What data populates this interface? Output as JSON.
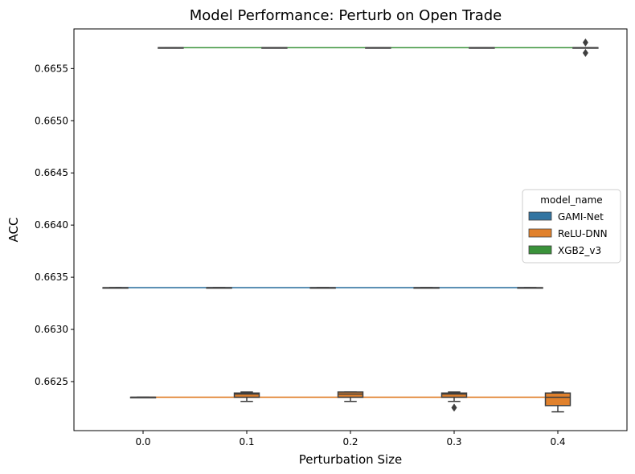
{
  "chart_data": {
    "type": "box",
    "title": "Model Performance: Perturb on Open Trade",
    "xlabel": "Perturbation Size",
    "ylabel": "ACC",
    "categories": [
      "0.0",
      "0.1",
      "0.2",
      "0.3",
      "0.4"
    ],
    "ylim": [
      0.66203,
      0.66588
    ],
    "yticks": [
      "0.6625",
      "0.6630",
      "0.6635",
      "0.6640",
      "0.6645",
      "0.6650",
      "0.6655"
    ],
    "ytick_values": [
      0.6625,
      0.663,
      0.6635,
      0.664,
      0.6645,
      0.665,
      0.6655
    ],
    "grid": false,
    "legend": {
      "title": "model_name",
      "placement": "center-right"
    },
    "series": [
      {
        "name": "GAMI-Net",
        "color": "#3274a1",
        "median_line": [
          0.6634,
          0.6634,
          0.6634,
          0.6634,
          0.6634
        ],
        "boxes": [
          {
            "q1": 0.6634,
            "median": 0.6634,
            "q3": 0.6634,
            "whislo": 0.6634,
            "whishi": 0.6634,
            "fliers": []
          },
          {
            "q1": 0.6634,
            "median": 0.6634,
            "q3": 0.6634,
            "whislo": 0.6634,
            "whishi": 0.6634,
            "fliers": []
          },
          {
            "q1": 0.6634,
            "median": 0.6634,
            "q3": 0.6634,
            "whislo": 0.6634,
            "whishi": 0.6634,
            "fliers": []
          },
          {
            "q1": 0.6634,
            "median": 0.6634,
            "q3": 0.6634,
            "whislo": 0.6634,
            "whishi": 0.6634,
            "fliers": []
          },
          {
            "q1": 0.6634,
            "median": 0.6634,
            "q3": 0.6634,
            "whislo": 0.6634,
            "whishi": 0.6634,
            "fliers": []
          }
        ]
      },
      {
        "name": "ReLU-DNN",
        "color": "#e1812c",
        "median_line": [
          0.66235,
          0.66235,
          0.66235,
          0.66235,
          0.66235
        ],
        "boxes": [
          {
            "q1": 0.66235,
            "median": 0.66235,
            "q3": 0.66235,
            "whislo": 0.66235,
            "whishi": 0.66235,
            "fliers": []
          },
          {
            "q1": 0.66235,
            "median": 0.66238,
            "q3": 0.66239,
            "whislo": 0.66231,
            "whishi": 0.6624,
            "fliers": []
          },
          {
            "q1": 0.66235,
            "median": 0.66238,
            "q3": 0.6624,
            "whislo": 0.66231,
            "whishi": 0.6624,
            "fliers": []
          },
          {
            "q1": 0.66235,
            "median": 0.66238,
            "q3": 0.66239,
            "whislo": 0.66231,
            "whishi": 0.6624,
            "fliers": [
              0.66225
            ]
          },
          {
            "q1": 0.66227,
            "median": 0.66235,
            "q3": 0.66239,
            "whislo": 0.66221,
            "whishi": 0.6624,
            "fliers": []
          }
        ]
      },
      {
        "name": "XGB2_v3",
        "color": "#3a923a",
        "median_line": [
          0.6657,
          0.6657,
          0.6657,
          0.6657,
          0.6657
        ],
        "boxes": [
          {
            "q1": 0.6657,
            "median": 0.6657,
            "q3": 0.6657,
            "whislo": 0.6657,
            "whishi": 0.6657,
            "fliers": []
          },
          {
            "q1": 0.6657,
            "median": 0.6657,
            "q3": 0.6657,
            "whislo": 0.6657,
            "whishi": 0.6657,
            "fliers": []
          },
          {
            "q1": 0.6657,
            "median": 0.6657,
            "q3": 0.6657,
            "whislo": 0.6657,
            "whishi": 0.6657,
            "fliers": []
          },
          {
            "q1": 0.6657,
            "median": 0.6657,
            "q3": 0.6657,
            "whislo": 0.6657,
            "whishi": 0.6657,
            "fliers": []
          },
          {
            "q1": 0.6657,
            "median": 0.6657,
            "q3": 0.6657,
            "whislo": 0.6657,
            "whishi": 0.6657,
            "fliers": [
              0.66575,
              0.66565
            ]
          }
        ]
      }
    ]
  }
}
